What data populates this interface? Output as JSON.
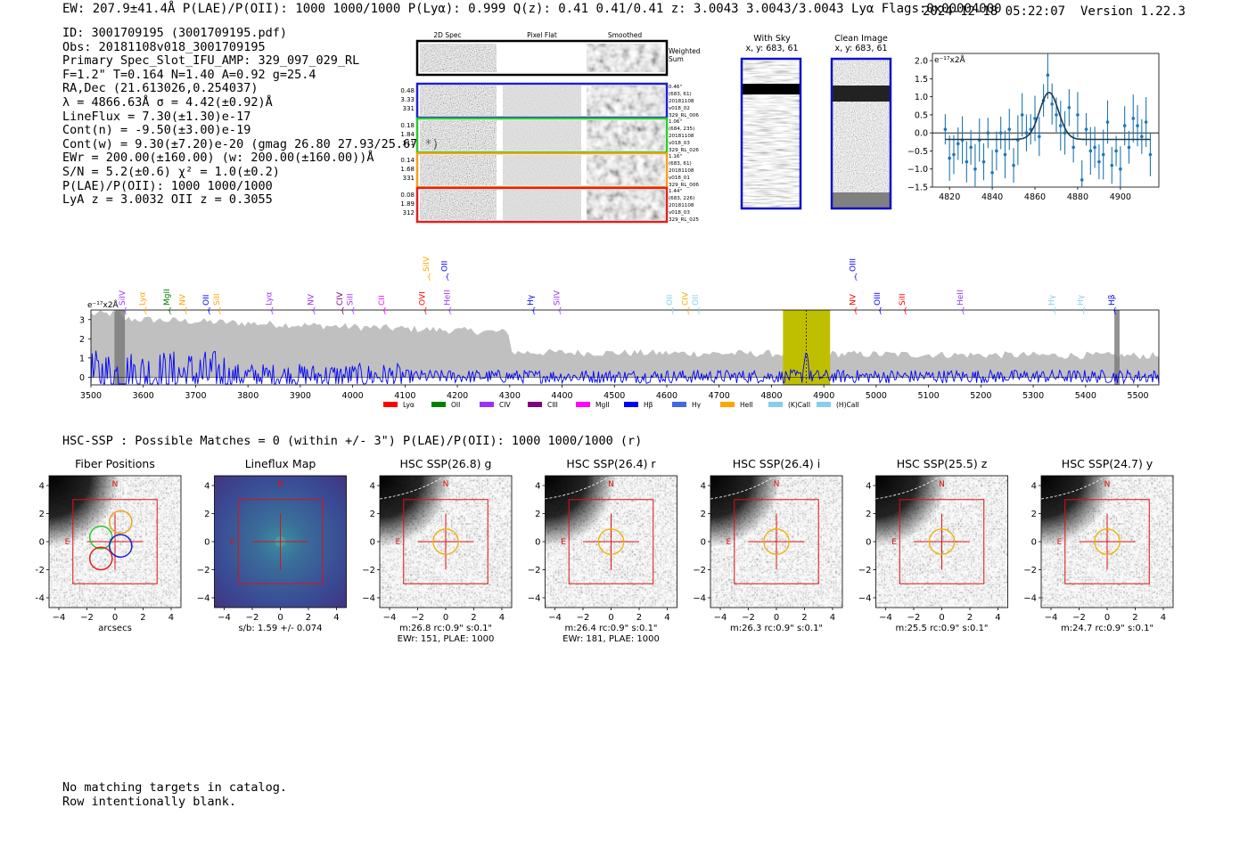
{
  "header": {
    "line": "EW: 207.9±41.4Å  P(LAE)/P(OII): 1000 1000/1000  P(Lyα): 0.999  Q(z): 0.41 0.41/0.41  z: 3.0043 3.0043/3.0043 Lyα  Flags:0x00004000",
    "timestamp": "2024-12-18 05:22:07",
    "version": "Version 1.22.3"
  },
  "info": {
    "lines": [
      "ID: 3001709195 (3001709195.pdf)",
      "Obs: 20181108v018_3001709195",
      "Primary Spec_Slot_IFU_AMP: 329_097_029_RL",
      "F=1.2\"  T=0.164  N=1.40  A=0.92  g=25.4",
      "RA,Dec (21.613026,0.254037)",
      "λ = 4866.63Å  σ = 4.42(±0.92)Å",
      "LineFlux = 7.30(±1.30)e-17",
      "Cont(n) = -9.50(±3.00)e-19",
      "Cont(w) = 9.30(±7.20)e-20 (gmag 26.80 27.93/25.67 *)",
      "EWr = 200.00(±160.00) (w: 200.00(±160.00))Å",
      "S/N = 5.2(±0.6)  χ² = 1.0(±0.2)",
      "P(LAE)/P(OII): 1000 1000/1000",
      "LyA z = 3.0032  OII z = 0.3055"
    ]
  },
  "cutouts": {
    "col_headers": [
      "2D Spec",
      "Pixel Flat",
      "Smoothed"
    ],
    "weighted_label": "Weighted Sum",
    "rows": [
      {
        "left": [
          "0.48",
          "3.33",
          "331"
        ],
        "right": [
          "0.46\"",
          "(683, 61)",
          "20181108",
          "v018_02",
          "329_RL_006"
        ],
        "color": "#1f1fd0"
      },
      {
        "left": [
          "0.18",
          "1.84",
          "311"
        ],
        "right": [
          "1.06\"",
          "(684, 235)",
          "20181108",
          "v018_03",
          "329_RL_026"
        ],
        "color": "#2ec82e"
      },
      {
        "left": [
          "0.14",
          "1.68",
          "331"
        ],
        "right": [
          "1.16\"",
          "(683, 61)",
          "20181108",
          "v018_01",
          "329_RL_006"
        ],
        "color": "#f0a020"
      },
      {
        "left": [
          "0.08",
          "1.89",
          "312"
        ],
        "right": [
          "1.44\"",
          "(683, 226)",
          "20181108",
          "v018_03",
          "329_RL_025"
        ],
        "color": "#e02020"
      }
    ]
  },
  "sky_panels": {
    "with_sky_title": "With Sky",
    "with_sky_xy": "x, y: 683, 61",
    "clean_title": "Clean Image",
    "clean_xy": "x, y: 683, 61"
  },
  "chart_data": [
    {
      "type": "line",
      "name": "line-fit-zoom",
      "unit_label": "e⁻¹⁷x2Å",
      "xlim": [
        4812,
        4918
      ],
      "ylim": [
        -1.5,
        2.2
      ],
      "x_ticks": [
        4820,
        4840,
        4860,
        4880,
        4900
      ],
      "y_ticks": [
        -1.5,
        -1.0,
        -0.5,
        0.0,
        0.5,
        1.0,
        1.5,
        2.0
      ],
      "y_tick_labels": [
        "−1.5",
        "−1.0",
        "−0.5",
        "0.0",
        "0.5",
        "1.0",
        "1.5",
        "2.0"
      ],
      "fit_center": 4866.6,
      "fit_sigma": 4.4,
      "fit_amplitude": 1.3,
      "fit_baseline": -0.18,
      "points_x": [
        4818,
        4820,
        4822,
        4824,
        4826,
        4828,
        4830,
        4832,
        4834,
        4836,
        4838,
        4840,
        4842,
        4844,
        4846,
        4848,
        4850,
        4852,
        4854,
        4856,
        4858,
        4860,
        4862,
        4864,
        4866,
        4868,
        4870,
        4872,
        4874,
        4876,
        4878,
        4880,
        4882,
        4884,
        4886,
        4888,
        4890,
        4892,
        4894,
        4896,
        4898,
        4900,
        4902,
        4904,
        4906,
        4908,
        4910,
        4912,
        4914
      ],
      "points_y": [
        0.1,
        -0.7,
        -0.6,
        -0.3,
        -0.2,
        -0.8,
        -0.4,
        -1.0,
        -0.2,
        -0.8,
        0.0,
        -1.1,
        -0.5,
        0.0,
        -0.6,
        0.1,
        -0.9,
        -0.2,
        0.5,
        0.0,
        0.1,
        0.4,
        -0.1,
        0.9,
        1.6,
        0.8,
        0.5,
        0.2,
        0.0,
        0.7,
        -0.4,
        0.5,
        -1.3,
        0.1,
        -0.5,
        -0.4,
        -0.8,
        -0.6,
        0.3,
        -0.9,
        -0.5,
        -1.0,
        0.2,
        -0.4,
        0.4,
        0.2,
        -0.1,
        0.3,
        -0.6
      ],
      "errors": 0.6
    },
    {
      "type": "line",
      "name": "full-spectrum",
      "unit_label": "e⁻¹⁷x2Å",
      "xlim": [
        3500,
        5540
      ],
      "ylim": [
        -0.4,
        3.5
      ],
      "x_ticks": [
        3500,
        3600,
        3700,
        3800,
        3900,
        4000,
        4100,
        4200,
        4300,
        4400,
        4500,
        4600,
        4700,
        4800,
        4900,
        5000,
        5100,
        5200,
        5300,
        5400,
        5500
      ],
      "y_ticks": [
        0,
        1,
        2,
        3
      ],
      "highlight_range": [
        4822,
        4912
      ],
      "peak_wave": 4866.6,
      "masked_ranges": [
        [
          3545,
          3565
        ],
        [
          5455,
          5465
        ]
      ],
      "line_markers": [
        {
          "label": "SiIV",
          "x": 3565,
          "color": "#9b30ff",
          "row": 1
        },
        {
          "label": "Lyα",
          "x": 3603,
          "color": "#ffa500",
          "row": 1
        },
        {
          "label": "MgII",
          "x": 3650,
          "color": "#008000",
          "row": 1
        },
        {
          "label": "NV",
          "x": 3680,
          "color": "#ffa500",
          "row": 1
        },
        {
          "label": "OII",
          "x": 3725,
          "color": "#0000ff",
          "row": 1
        },
        {
          "label": "SiII",
          "x": 3745,
          "color": "#ffa500",
          "row": 1
        },
        {
          "label": "Lyα",
          "x": 3845,
          "color": "#9b30ff",
          "row": 1
        },
        {
          "label": "NV",
          "x": 3925,
          "color": "#9b30ff",
          "row": 1
        },
        {
          "label": "CIV",
          "x": 3980,
          "color": "#800080",
          "row": 1
        },
        {
          "label": "SiII",
          "x": 4000,
          "color": "#9b30ff",
          "row": 1
        },
        {
          "label": "CII",
          "x": 4060,
          "color": "#ff00ff",
          "row": 1
        },
        {
          "label": "SiIV",
          "x": 4145,
          "color": "#ffa500",
          "row": 0
        },
        {
          "label": "OII",
          "x": 4180,
          "color": "#0000ff",
          "row": 0
        },
        {
          "label": "OVI",
          "x": 4138,
          "color": "#ff0000",
          "row": 1
        },
        {
          "label": "HeII",
          "x": 4185,
          "color": "#9b30ff",
          "row": 1
        },
        {
          "label": "Hγ",
          "x": 4345,
          "color": "#0000ff",
          "row": 1
        },
        {
          "label": "SiIV",
          "x": 4395,
          "color": "#9b30ff",
          "row": 1
        },
        {
          "label": "OII",
          "x": 4610,
          "color": "#87ceeb",
          "row": 1
        },
        {
          "label": "CIV",
          "x": 4640,
          "color": "#ffa500",
          "row": 1
        },
        {
          "label": "OII",
          "x": 4660,
          "color": "#87ceeb",
          "row": 1
        },
        {
          "label": "OIII",
          "x": 4960,
          "color": "#0000ff",
          "row": 0
        },
        {
          "label": "NV",
          "x": 4960,
          "color": "#ff0000",
          "row": 1
        },
        {
          "label": "OIII",
          "x": 5007,
          "color": "#0000ff",
          "row": 1
        },
        {
          "label": "SiII",
          "x": 5055,
          "color": "#ff0000",
          "row": 1
        },
        {
          "label": "HeII",
          "x": 5165,
          "color": "#9b30ff",
          "row": 1
        },
        {
          "label": "Hγ",
          "x": 5340,
          "color": "#87ceeb",
          "row": 1
        },
        {
          "label": "Hγ",
          "x": 5395,
          "color": "#87ceeb",
          "row": 1
        },
        {
          "label": "Hβ",
          "x": 5455,
          "color": "#0000ff",
          "row": 1
        }
      ],
      "legend": [
        {
          "label": "Lyα",
          "color": "#ff0000"
        },
        {
          "label": "OII",
          "color": "#008000"
        },
        {
          "label": "CIV",
          "color": "#9b30ff"
        },
        {
          "label": "CIII",
          "color": "#800080"
        },
        {
          "label": "MgII",
          "color": "#ff00ff"
        },
        {
          "label": "Hβ",
          "color": "#0000ff"
        },
        {
          "label": "Hγ",
          "color": "#4169e1"
        },
        {
          "label": "HeII",
          "color": "#ffa500"
        },
        {
          "label": "(K)CaII",
          "color": "#87ceeb"
        },
        {
          "label": "(H)CaII",
          "color": "#87ceeb"
        }
      ]
    }
  ],
  "hsc": {
    "line": "HSC-SSP : Possible Matches = 0 (within +/- 3\")  P(LAE)/P(OII): 1000 1000/1000  (r)",
    "axis_ticks": [
      "−4",
      "−2",
      "0",
      "2",
      "4"
    ],
    "panels": [
      {
        "title": "Fiber Positions",
        "caption1": "arcsecs",
        "caption2": "",
        "kind": "fiber"
      },
      {
        "title": "Lineflux Map",
        "caption1": "s/b: 1.59 +/- 0.074",
        "caption2": "",
        "kind": "lineflux"
      },
      {
        "title": "HSC SSP(26.8) g",
        "caption1": "m:26.8 rc:0.9\"  s:0.1\"",
        "caption2": "EWr: 151, PLAE: 1000",
        "kind": "image"
      },
      {
        "title": "HSC SSP(26.4) r",
        "caption1": "m:26.4 rc:0.9\"  s:0.1\"",
        "caption2": "EWr: 181, PLAE: 1000",
        "kind": "image"
      },
      {
        "title": "HSC SSP(26.4) i",
        "caption1": "m:26.3 rc:0.9\"  s:0.1\"",
        "caption2": "",
        "kind": "image"
      },
      {
        "title": "HSC SSP(25.5) z",
        "caption1": "m:25.5 rc:0.9\"  s:0.1\"",
        "caption2": "",
        "kind": "image"
      },
      {
        "title": "HSC SSP(24.7) y",
        "caption1": "m:24.7 rc:0.9\"  s:0.1\"",
        "caption2": "",
        "kind": "image"
      }
    ],
    "compass_n": "N",
    "compass_e": "E"
  },
  "footer": {
    "lines": [
      "No matching targets in catalog.",
      "Row intentionally blank."
    ]
  },
  "colors": {
    "spectrum": "#0000ff",
    "noise": "#c0c0c0",
    "highlight": "#bfbf00",
    "fit_points": "#1f77b4",
    "fit_curve": "#1f3a4f"
  }
}
